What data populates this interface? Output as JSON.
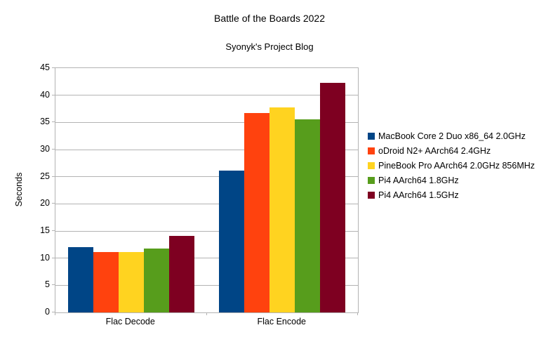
{
  "title": "Battle of the Boards 2022",
  "subtitle": "Syonyk's Project Blog",
  "chart_data": {
    "type": "bar",
    "title": "Battle of the Boards 2022",
    "subtitle": "Syonyk's Project Blog",
    "ylabel": "Seconds",
    "xlabel": "",
    "ylim": [
      0,
      45
    ],
    "yticks": [
      0,
      5,
      10,
      15,
      20,
      25,
      30,
      35,
      40,
      45
    ],
    "grid": true,
    "legend_position": "right",
    "categories": [
      "Flac Decode",
      "Flac Encode"
    ],
    "series": [
      {
        "name": "MacBook Core 2 Duo x86_64 2.0GHz",
        "color": "#004586",
        "values": [
          12.0,
          26.1
        ]
      },
      {
        "name": "oDroid N2+ AArch64 2.4GHz",
        "color": "#FF420E",
        "values": [
          11.1,
          36.7
        ]
      },
      {
        "name": "PineBook Pro AArch64 2.0GHz 856MHz",
        "color": "#FFD320",
        "values": [
          11.1,
          37.8
        ]
      },
      {
        "name": "Pi4 AArch64 1.8GHz",
        "color": "#579D1C",
        "values": [
          11.8,
          35.5
        ]
      },
      {
        "name": "Pi4 AArch64 1.5GHz",
        "color": "#7E0021",
        "values": [
          14.1,
          42.3
        ]
      }
    ]
  }
}
